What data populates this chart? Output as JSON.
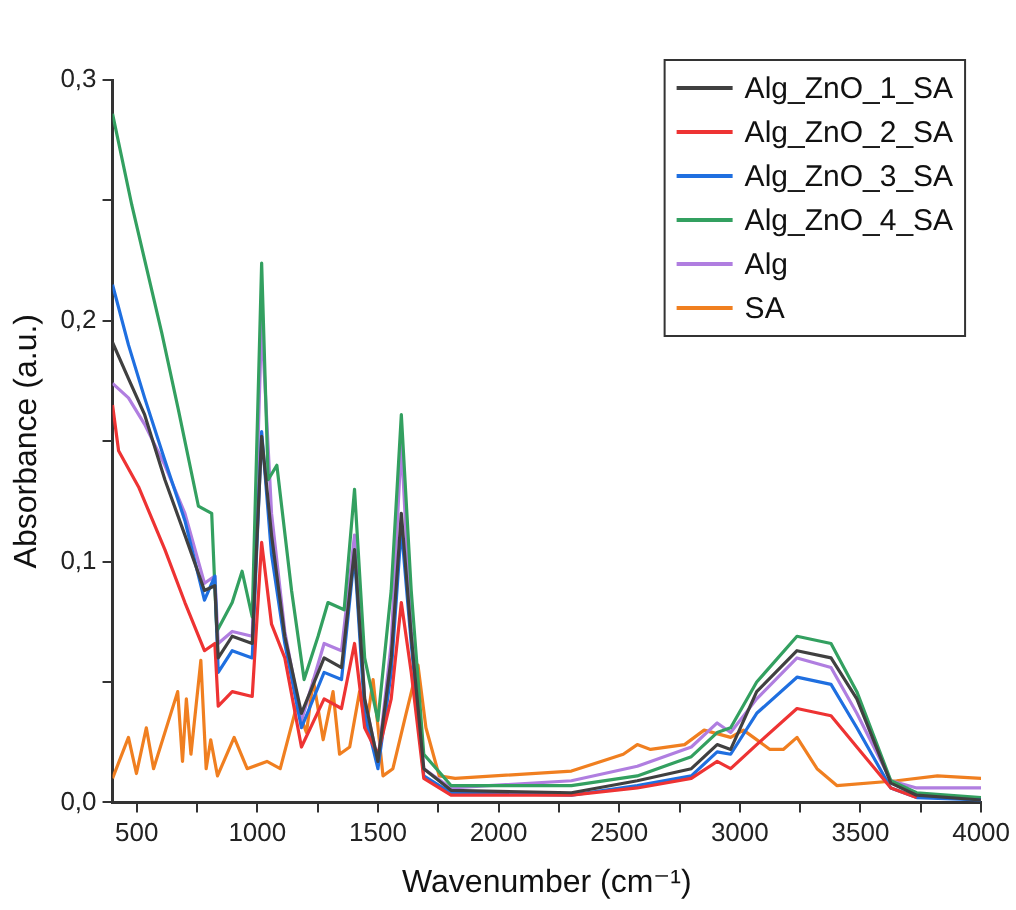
{
  "chart_data": {
    "type": "line",
    "xlabel": "Wavenumber (cm⁻¹)",
    "ylabel": "Absorbance (a.u.)",
    "xlim": [
      400,
      4000
    ],
    "xticks": [
      500,
      {
        "value": 750,
        "label": null
      },
      1000,
      {
        "value": 1250,
        "label": null
      },
      1500,
      {
        "value": 1750,
        "label": null
      },
      2000,
      {
        "value": 2250,
        "label": null
      },
      2500,
      {
        "value": 2750,
        "label": null
      },
      3000,
      {
        "value": 3250,
        "label": null
      },
      3500,
      {
        "value": 3750,
        "label": null
      },
      4000
    ],
    "ylim": [
      0,
      0.3
    ],
    "yticks": [
      {
        "value": 0,
        "label": "0,0"
      },
      {
        "value": 0.05,
        "label": null
      },
      {
        "value": 0.1,
        "label": "0,1"
      },
      {
        "value": 0.15,
        "label": null
      },
      {
        "value": 0.2,
        "label": "0,2"
      },
      {
        "value": 0.25,
        "label": null
      },
      {
        "value": 0.3,
        "label": "0,3"
      }
    ],
    "grid": false,
    "legend": "top right",
    "marker": "none",
    "line_style": "solid",
    "series": [
      {
        "name": "Alg_ZnO_1_SA",
        "color": "#404040",
        "x": [
          400,
          466,
          533,
          617,
          700,
          781,
          824,
          838,
          896,
          979,
          1018,
          1059,
          1114,
          1183,
          1277,
          1349,
          1403,
          1445,
          1500,
          1555,
          1597,
          1638,
          1690,
          1803,
          2302,
          2575,
          2799,
          2906,
          2962,
          3070,
          3237,
          3378,
          3485,
          3626,
          3733,
          4000
        ],
        "values": [
          0.191,
          0.176,
          0.161,
          0.134,
          0.111,
          0.088,
          0.09,
          0.06,
          0.069,
          0.066,
          0.152,
          0.111,
          0.069,
          0.037,
          0.06,
          0.056,
          0.105,
          0.043,
          0.017,
          0.06,
          0.12,
          0.069,
          0.014,
          0.005,
          0.004,
          0.009,
          0.014,
          0.024,
          0.022,
          0.046,
          0.063,
          0.06,
          0.043,
          0.008,
          0.003,
          0.001
        ]
      },
      {
        "name": "Alg_ZnO_2_SA",
        "color": "#ee3333",
        "x": [
          400,
          425,
          508,
          617,
          700,
          781,
          824,
          838,
          896,
          979,
          1018,
          1059,
          1114,
          1183,
          1277,
          1349,
          1403,
          1445,
          1500,
          1555,
          1597,
          1638,
          1690,
          1803,
          2302,
          2575,
          2799,
          2906,
          2962,
          3070,
          3237,
          3378,
          3485,
          3626,
          3733
        ],
        "values": [
          0.165,
          0.146,
          0.131,
          0.105,
          0.083,
          0.063,
          0.066,
          0.04,
          0.046,
          0.044,
          0.108,
          0.074,
          0.06,
          0.023,
          0.043,
          0.039,
          0.066,
          0.031,
          0.02,
          0.043,
          0.083,
          0.054,
          0.01,
          0.003,
          0.003,
          0.006,
          0.01,
          0.017,
          0.014,
          0.024,
          0.039,
          0.036,
          0.023,
          0.006,
          0.002
        ]
      },
      {
        "name": "Alg_ZnO_3_SA",
        "color": "#1f6fe0",
        "x": [
          400,
          466,
          533,
          617,
          700,
          781,
          824,
          838,
          896,
          979,
          1018,
          1059,
          1114,
          1183,
          1277,
          1349,
          1403,
          1445,
          1500,
          1555,
          1597,
          1638,
          1690,
          1803,
          2302,
          2575,
          2799,
          2906,
          2962,
          3070,
          3237,
          3378,
          3485,
          3626,
          3733,
          4000
        ],
        "values": [
          0.215,
          0.19,
          0.168,
          0.142,
          0.117,
          0.084,
          0.094,
          0.054,
          0.063,
          0.06,
          0.154,
          0.103,
          0.066,
          0.031,
          0.054,
          0.051,
          0.103,
          0.037,
          0.014,
          0.054,
          0.114,
          0.066,
          0.011,
          0.004,
          0.003,
          0.007,
          0.011,
          0.021,
          0.02,
          0.037,
          0.052,
          0.049,
          0.031,
          0.006,
          0.002,
          0.001
        ]
      },
      {
        "name": "Alg_ZnO_4_SA",
        "color": "#33a060",
        "x": [
          400,
          480,
          604,
          673,
          756,
          811,
          832,
          896,
          937,
          979,
          1018,
          1045,
          1081,
          1142,
          1194,
          1252,
          1293,
          1360,
          1403,
          1445,
          1500,
          1555,
          1597,
          1638,
          1690,
          1803,
          2302,
          2575,
          2799,
          2906,
          2962,
          3070,
          3237,
          3378,
          3485,
          3626,
          3733,
          4000
        ],
        "values": [
          0.286,
          0.248,
          0.195,
          0.163,
          0.123,
          0.12,
          0.071,
          0.083,
          0.096,
          0.077,
          0.224,
          0.134,
          0.14,
          0.088,
          0.051,
          0.069,
          0.083,
          0.08,
          0.13,
          0.06,
          0.034,
          0.088,
          0.161,
          0.088,
          0.02,
          0.007,
          0.007,
          0.011,
          0.019,
          0.029,
          0.031,
          0.05,
          0.069,
          0.066,
          0.046,
          0.009,
          0.004,
          0.002
        ]
      },
      {
        "name": "Alg",
        "color": "#b07ee0",
        "x": [
          400,
          466,
          533,
          617,
          700,
          781,
          824,
          838,
          896,
          979,
          1018,
          1059,
          1114,
          1183,
          1277,
          1349,
          1403,
          1445,
          1500,
          1555,
          1597,
          1638,
          1690,
          1803,
          2302,
          2575,
          2799,
          2906,
          2962,
          3070,
          3237,
          3378,
          3485,
          3626,
          3733,
          4000
        ],
        "values": [
          0.174,
          0.168,
          0.157,
          0.14,
          0.12,
          0.091,
          0.094,
          0.066,
          0.071,
          0.069,
          0.2,
          0.12,
          0.071,
          0.034,
          0.066,
          0.063,
          0.111,
          0.043,
          0.017,
          0.066,
          0.149,
          0.071,
          0.014,
          0.006,
          0.009,
          0.015,
          0.023,
          0.033,
          0.029,
          0.043,
          0.06,
          0.056,
          0.037,
          0.009,
          0.006,
          0.006
        ]
      },
      {
        "name": "SA",
        "color": "#f07f20",
        "x": [
          400,
          466,
          499,
          540,
          570,
          670,
          690,
          706,
          725,
          766,
          788,
          807,
          835,
          904,
          958,
          1040,
          1095,
          1163,
          1204,
          1232,
          1273,
          1314,
          1341,
          1383,
          1424,
          1452,
          1480,
          1521,
          1562,
          1617,
          1666,
          1699,
          1754,
          1820,
          2302,
          2517,
          2575,
          2630,
          2771,
          2852,
          2962,
          3015,
          3125,
          3180,
          3237,
          3320,
          3402,
          3650,
          3819,
          4000
        ],
        "values": [
          0.01,
          0.027,
          0.012,
          0.031,
          0.014,
          0.046,
          0.017,
          0.043,
          0.02,
          0.059,
          0.014,
          0.026,
          0.011,
          0.027,
          0.014,
          0.017,
          0.014,
          0.04,
          0.029,
          0.051,
          0.026,
          0.046,
          0.02,
          0.023,
          0.046,
          0.031,
          0.051,
          0.011,
          0.014,
          0.037,
          0.057,
          0.031,
          0.011,
          0.01,
          0.013,
          0.02,
          0.024,
          0.022,
          0.024,
          0.03,
          0.027,
          0.03,
          0.022,
          0.022,
          0.027,
          0.014,
          0.007,
          0.009,
          0.011,
          0.01
        ]
      }
    ]
  }
}
